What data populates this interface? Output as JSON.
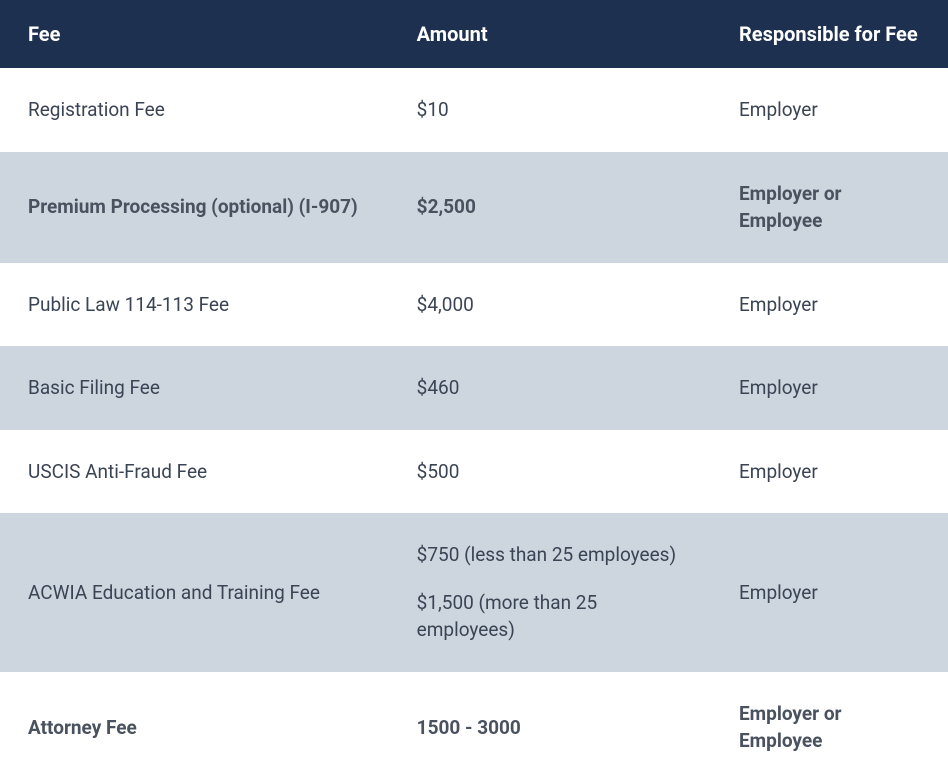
{
  "table": {
    "columns": [
      "Fee",
      "Amount",
      "Responsible for Fee"
    ],
    "header_bg": "#1e3050",
    "header_text_color": "#ffffff",
    "shade_bg": "#cdd5de",
    "text_color": "#3a4454",
    "rows": [
      {
        "fee": "Registration Fee",
        "amount": "$10",
        "responsible": "Employer",
        "bold": false,
        "shade": false
      },
      {
        "fee": "Premium Processing (optional) (I-907)",
        "amount": "$2,500",
        "responsible": "Employer or Employee",
        "bold": true,
        "shade": true
      },
      {
        "fee": "Public Law 114-113 Fee",
        "amount": "$4,000",
        "responsible": "Employer",
        "bold": false,
        "shade": false
      },
      {
        "fee": "Basic Filing Fee",
        "amount": "$460",
        "responsible": "Employer",
        "bold": false,
        "shade": true
      },
      {
        "fee": "USCIS Anti-Fraud Fee",
        "amount": "$500",
        "responsible": "Employer",
        "bold": false,
        "shade": false
      },
      {
        "fee": "ACWIA Education and Training Fee",
        "amount_line1": "$750 (less than 25 employees)",
        "amount_line2": "$1,500 (more than 25 employees)",
        "responsible": "Employer",
        "bold": false,
        "shade": true
      },
      {
        "fee": "Attorney Fee",
        "amount": "1500 - 3000",
        "responsible": "Employer or Employee",
        "bold": true,
        "shade": false
      }
    ]
  }
}
